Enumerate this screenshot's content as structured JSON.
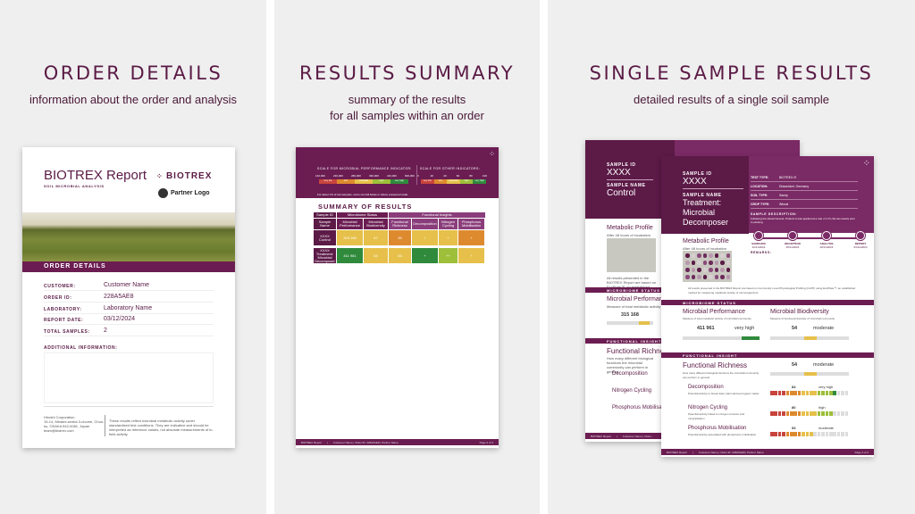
{
  "colors": {
    "brand": "#6b1d52",
    "dark": "#5a1a45",
    "red": "#c8443c",
    "orange": "#dd8a2f",
    "yellow": "#e6c04a",
    "lightgreen": "#9dbf3a",
    "green": "#2f8a3c"
  },
  "panels": [
    {
      "title": "ORDER DETAILS",
      "subtitle": "information about the order and analysis"
    },
    {
      "title": "RESULTS SUMMARY",
      "subtitle_line1": "summary of the results",
      "subtitle_line2": "for all samples within an order"
    },
    {
      "title": "SINGLE SAMPLE RESULTS",
      "subtitle": "detailed results of a single soil sample"
    }
  ],
  "order_doc": {
    "report_title": "BIOTREX Report",
    "report_subtitle": "SOIL MICROBIAL ANALYSIS",
    "brand_logo": "BIOTREX",
    "partner_logo": "Partner Logo",
    "section": "ORDER DETAILS",
    "rows": [
      {
        "label": "CUSTOMER:",
        "value": "Customer Name"
      },
      {
        "label": "ORDER ID:",
        "value": "228A5AE8"
      },
      {
        "label": "LABORATORY:",
        "value": "Laboratory Name"
      },
      {
        "label": "REPORT DATE:",
        "value": "03/12/2024"
      },
      {
        "label": "TOTAL SAMPLES:",
        "value": "2"
      }
    ],
    "additional_label": "ADDITIONAL INFORMATION:",
    "footer_company": "Hiroshi Corporation",
    "footer_address": "15-14, Minami-senba 3-chome, Chuo-ku, OSAKA 542-0081, Japan",
    "footer_email": "team@biotrex.com",
    "footer_note": "These results reflect microbial metabolic activity under standardized test conditions. They are indicative and should be interpreted as reference values, not absolute measurements of in-field activity."
  },
  "summary_doc": {
    "scale1_label": "SCALE FOR MICROBIAL PERFORMANCE INDICATOR:",
    "scale1_ticks": [
      "140,000",
      "230,000",
      "280,000",
      "330,000",
      "410,000",
      "600,000"
    ],
    "scale2_label": "SCALE FOR OTHER INDICATORS:",
    "scale2_ticks": [
      "0",
      "20",
      "40",
      "60",
      "80",
      "100"
    ],
    "scale_levels": [
      "very low",
      "low",
      "moderate",
      "high",
      "very high"
    ],
    "scale_note": "For about 1% of soil samples, score can fall below or above presented scale.",
    "section": "SUMMARY OF RESULTS",
    "group_headers": [
      "Sample ID",
      "Microbiome Status",
      "Functional Insights"
    ],
    "column_headers": [
      "Sample Name",
      "Microbial Performance",
      "Microbial Biodiversity",
      "Functional Richness",
      "Decomposition",
      "Nitrogen Cycling",
      "Phosphorus Mobilisation"
    ],
    "rows": [
      {
        "id": "XXXX",
        "name": "Control",
        "values": [
          "315 168",
          "47",
          "39",
          "+",
          "+",
          "+"
        ],
        "colors": [
          "#e6c04a",
          "#e6c04a",
          "#dd8a2f",
          "#e6c04a",
          "#e6c04a",
          "#dd8a2f"
        ]
      },
      {
        "id": "XXXX",
        "name": "Treatment: Microbial Decomposer",
        "values": [
          "411 961",
          "54",
          "54",
          "+",
          "++",
          "+"
        ],
        "colors": [
          "#2f8a3c",
          "#e6c04a",
          "#e6c04a",
          "#2f8a3c",
          "#9dbf3a",
          "#e6c04a"
        ]
      }
    ],
    "footer": {
      "report": "BIOTREX Report",
      "meta": "Customer Name | Order ID: 228A5AE8 | Partner Name",
      "page": "Page 2 of 4"
    }
  },
  "sample_back": {
    "id_label": "SAMPLE ID",
    "id": "XXXX",
    "name_label": "SAMPLE NAME",
    "name": "Control",
    "metabolic_title": "Metabolic Profile",
    "metabolic_sub": "After 48 hours of incubation",
    "note": "All results presented in the BIOTREX Report are based on EcoPlate™, an established...",
    "microbiome_section": "MICROBIOME STATUS",
    "perf_title": "Microbial Performance",
    "perf_sub": "Measure of total metabolic activity",
    "perf_value": "315 168",
    "functional_section": "FUNCTIONAL INSIGHT",
    "richness_title": "Functional Richness",
    "richness_sub": "How many different biological functions the microbial community can perform in general",
    "items": [
      "Decomposition",
      "Nitrogen Cycling",
      "Phosphorus Mobilisation"
    ],
    "footer": {
      "report": "BIOTREX Report",
      "meta": "Customer Name | Order..."
    }
  },
  "sample_front": {
    "id_label": "SAMPLE ID",
    "id": "XXXX",
    "name_label": "SAMPLE NAME",
    "name_line1": "Treatment:",
    "name_line2": "Microbial",
    "name_line3": "Decomposer",
    "info": [
      {
        "label": "TEST TYPE:",
        "value": "BIOTREX-R"
      },
      {
        "label": "LOCATION:",
        "value": "Düsseldorf, Germany"
      },
      {
        "label": "SOIL TYPE:",
        "value": "Sandy"
      },
      {
        "label": "CROP TYPE:",
        "value": "Wheat"
      }
    ],
    "desc_label": "SAMPLE DESCRIPTION:",
    "desc": "Following the wheat harvest, Product A was applied at a rate of 1.5 L/ha two weeks prior to plowing.",
    "timeline": [
      {
        "label": "SAMPLING",
        "date": "22/11/2024"
      },
      {
        "label": "RECEPTION",
        "date": "25/11/2024"
      },
      {
        "label": "ANALYSIS",
        "date": "26/11/2024"
      },
      {
        "label": "REPORT",
        "date": "03/12/2024"
      }
    ],
    "remarks_label": "REMARKS:",
    "metabolic_title": "Metabolic Profile",
    "metabolic_sub": "After 48 hours of incubation",
    "note": "All results presented in the BIOTREX Report are based on Community Level Physiological Profiling (CLPP) using EcoPlate™, an established method for measuring metabolic activity of microorganisms.",
    "microbiome_section": "MICROBIOME STATUS",
    "perf": {
      "title": "Microbial Performance",
      "sub": "Measure of total metabolic activity of microbial community",
      "value": "411 961",
      "level": "very high",
      "fraction": 0.82
    },
    "biodiv": {
      "title": "Microbial Biodiversity",
      "sub": "Measure of functional diversity of microbial community",
      "value": "54",
      "level": "moderate",
      "fraction": 0.54
    },
    "functional_section": "FUNCTIONAL INSIGHT",
    "richness": {
      "title": "Functional Richness",
      "sub": "How many different biological functions the microbial community can perform in general",
      "value": "54",
      "level": "moderate",
      "fraction": 0.54
    },
    "items": [
      {
        "title": "Decomposition",
        "sub": "Potential activity to break down plant-derived organic matter",
        "value": "84",
        "level": "very high",
        "fraction": 0.84
      },
      {
        "title": "Nitrogen Cycling",
        "sub": "Potential activity linked to nitrogen turnover and mineralisation",
        "value": "80",
        "level": "high",
        "fraction": 0.8
      },
      {
        "title": "Phosphorus Mobilisation",
        "sub": "Potential activity associated with phosphorus mobilisation",
        "value": "53",
        "level": "moderate",
        "fraction": 0.53
      }
    ],
    "footer": {
      "report": "BIOTREX Report",
      "meta": "Customer Name | Order ID: 228A5AE8 | Partner Name",
      "page": "Page 4 of 4"
    }
  }
}
